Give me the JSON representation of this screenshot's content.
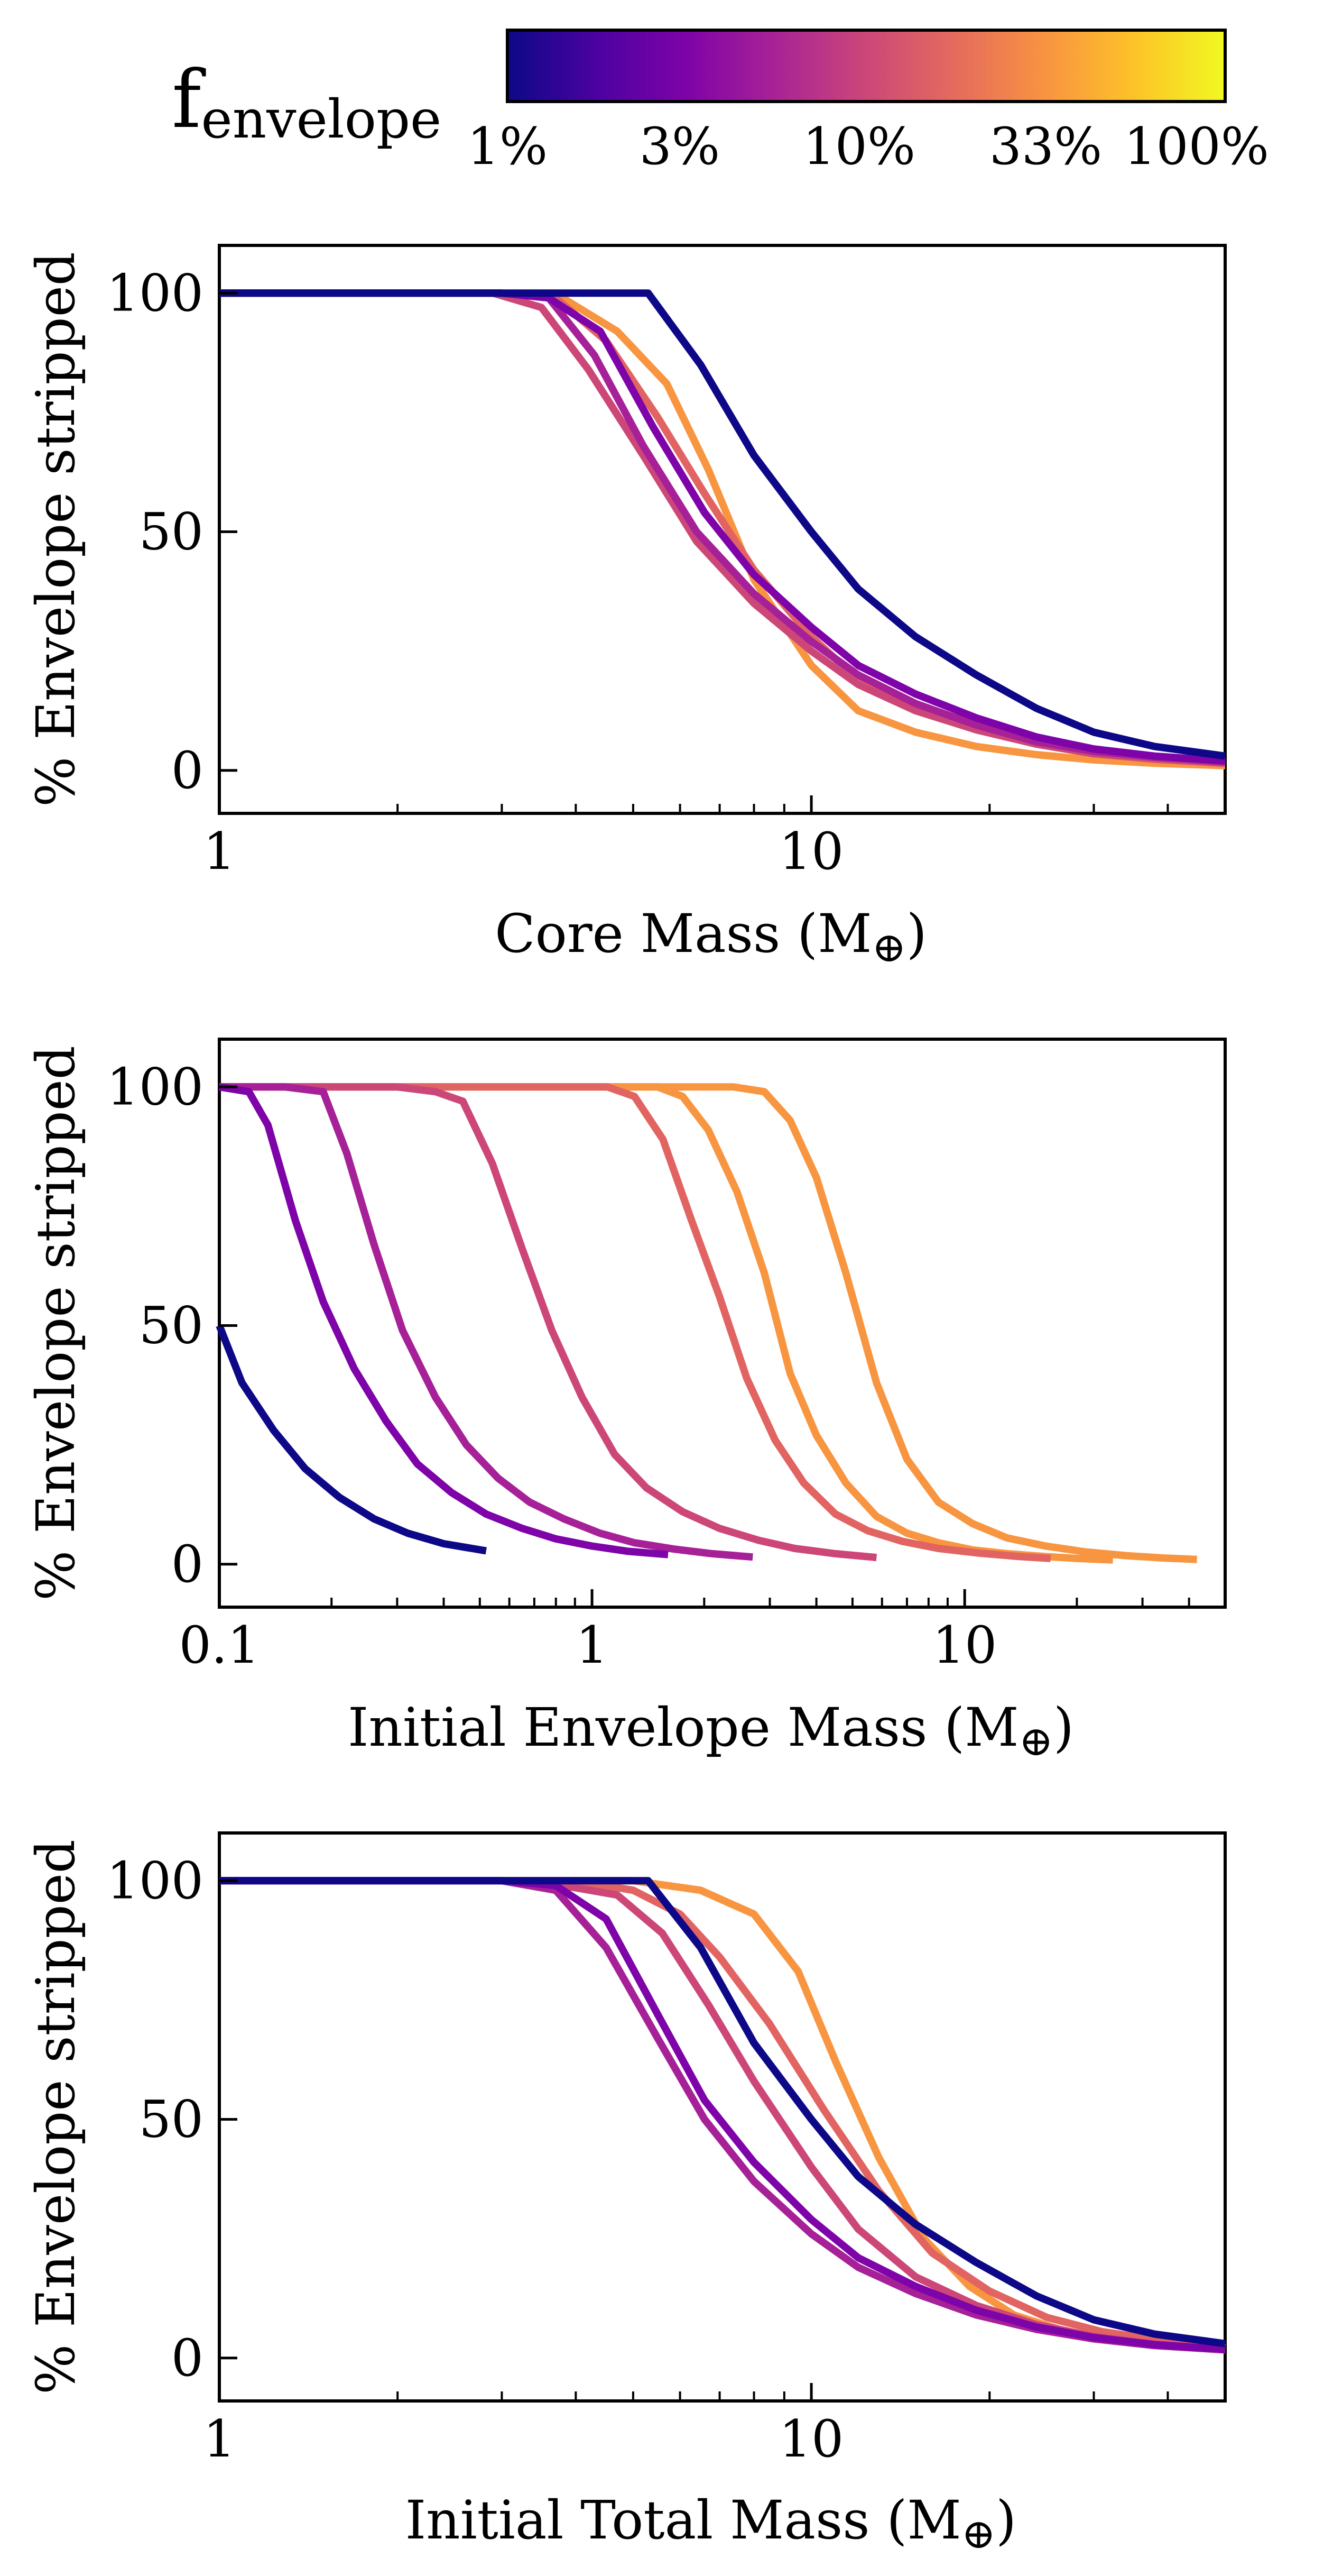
{
  "colorbar": {
    "title_main": "f",
    "title_sub": "envelope",
    "tick_labels": [
      "1%",
      "3%",
      "10%",
      "33%",
      "100%"
    ],
    "colormap": "plasma"
  },
  "series_colors": [
    "#0d0887",
    "#7e03a8",
    "#a62098",
    "#cc4778",
    "#e16462",
    "#f89540"
  ],
  "chart_data": [
    {
      "type": "line",
      "xlabel_text": "Core Mass (M",
      "xlabel_symbol": "⊕",
      "xlabel_close": ")",
      "ylabel": "% Envelope stripped",
      "xscale": "log",
      "xlim": [
        1,
        50
      ],
      "ylim": [
        -9,
        110
      ],
      "xticks": [
        1,
        10
      ],
      "xtick_labels": [
        "1",
        "10"
      ],
      "yticks": [
        0,
        50,
        100
      ],
      "ytick_labels": [
        "0",
        "50",
        "100"
      ],
      "series": [
        {
          "x": [
            1,
            2,
            3,
            4,
            5.3,
            6.5,
            8,
            10,
            12,
            15,
            19,
            24,
            30,
            38,
            50
          ],
          "y": [
            100,
            100,
            100,
            100,
            100,
            85,
            66,
            50,
            38,
            28,
            20,
            13,
            8,
            5,
            3
          ]
        },
        {
          "x": [
            1,
            2,
            3,
            3.6,
            4.4,
            5.4,
            6.6,
            8,
            10,
            12,
            15,
            19,
            24,
            30,
            38,
            50
          ],
          "y": [
            100,
            100,
            100,
            99,
            92,
            72,
            54,
            41,
            30,
            22,
            16,
            11,
            7,
            4.5,
            3,
            2
          ]
        },
        {
          "x": [
            1,
            2,
            3,
            3.6,
            4.3,
            5.2,
            6.4,
            8,
            10,
            12,
            15,
            19,
            24,
            30,
            38,
            50
          ],
          "y": [
            100,
            100,
            100,
            99,
            87,
            68,
            50,
            37,
            27,
            20,
            14,
            9.5,
            6,
            4,
            2.8,
            1.8
          ]
        },
        {
          "x": [
            1,
            2,
            2.9,
            3.5,
            4.2,
            5.2,
            6.4,
            8,
            10,
            12,
            15,
            19,
            24,
            30,
            38,
            50
          ],
          "y": [
            100,
            100,
            100,
            97,
            84,
            66,
            48,
            35,
            25,
            18,
            12.5,
            8.5,
            5.5,
            3.5,
            2.5,
            1.5
          ]
        },
        {
          "x": [
            1,
            2,
            3,
            3.7,
            4.5,
            5.5,
            6.6,
            8,
            10,
            12,
            15,
            19,
            24,
            30,
            38,
            50
          ],
          "y": [
            100,
            100,
            100,
            99,
            90,
            74,
            58,
            42,
            28,
            19,
            13,
            8.5,
            5.5,
            3.5,
            2.3,
            1.5
          ]
        },
        {
          "x": [
            1,
            2,
            3,
            3.8,
            4.7,
            5.7,
            6.7,
            8,
            10,
            12,
            15,
            19,
            24,
            30,
            38,
            50
          ],
          "y": [
            100,
            100,
            100,
            99,
            92,
            81,
            63,
            40,
            22,
            12.5,
            8,
            5,
            3.3,
            2.2,
            1.5,
            1
          ]
        }
      ]
    },
    {
      "type": "line",
      "xlabel_text": "Initial Envelope Mass (M",
      "xlabel_symbol": "⊕",
      "xlabel_close": ")",
      "ylabel": "% Envelope stripped",
      "xscale": "log",
      "xlim": [
        0.1,
        50
      ],
      "ylim": [
        -9,
        110
      ],
      "xticks": [
        0.1,
        1,
        10
      ],
      "xtick_labels": [
        "0.1",
        "1",
        "10"
      ],
      "yticks": [
        0,
        50,
        100
      ],
      "ytick_labels": [
        "0",
        "50",
        "100"
      ],
      "series": [
        {
          "x": [
            0.1,
            0.115,
            0.14,
            0.17,
            0.21,
            0.26,
            0.32,
            0.4,
            0.52
          ],
          "y": [
            50,
            38,
            28,
            20,
            14,
            9.5,
            6.5,
            4.3,
            2.8
          ]
        },
        {
          "x": [
            0.1,
            0.12,
            0.135,
            0.16,
            0.19,
            0.23,
            0.28,
            0.34,
            0.42,
            0.52,
            0.65,
            0.8,
            1,
            1.25,
            1.6
          ],
          "y": [
            100,
            99,
            92,
            72,
            55,
            41,
            30,
            21,
            15,
            10.5,
            7.5,
            5.3,
            3.8,
            2.7,
            2
          ]
        },
        {
          "x": [
            0.1,
            0.15,
            0.19,
            0.22,
            0.26,
            0.31,
            0.38,
            0.46,
            0.56,
            0.68,
            0.84,
            1.05,
            1.3,
            1.65,
            2.1,
            2.7
          ],
          "y": [
            100,
            100,
            99,
            86,
            67,
            49,
            35,
            25,
            18,
            13,
            9.5,
            6.5,
            4.5,
            3.2,
            2.2,
            1.5
          ]
        },
        {
          "x": [
            0.1,
            0.3,
            0.38,
            0.45,
            0.54,
            0.65,
            0.78,
            0.94,
            1.15,
            1.4,
            1.75,
            2.2,
            2.8,
            3.5,
            4.5,
            5.8
          ],
          "y": [
            100,
            100,
            99,
            97,
            84,
            66,
            49,
            35,
            23,
            16,
            11,
            7.5,
            5,
            3.3,
            2.2,
            1.4
          ]
        },
        {
          "x": [
            0.1,
            0.5,
            0.9,
            1.1,
            1.3,
            1.55,
            1.85,
            2.2,
            2.6,
            3.1,
            3.7,
            4.5,
            5.5,
            6.8,
            8.5,
            11,
            14,
            17
          ],
          "y": [
            100,
            100,
            100,
            100,
            98,
            89,
            72,
            56,
            39,
            26,
            17,
            10.5,
            7,
            4.8,
            3.3,
            2.3,
            1.6,
            1.2
          ]
        },
        {
          "x": [
            0.1,
            1,
            1.5,
            1.75,
            2.05,
            2.45,
            2.9,
            3.4,
            4,
            4.8,
            5.8,
            7,
            8.5,
            10.5,
            13,
            16.5,
            20,
            25
          ],
          "y": [
            100,
            100,
            100,
            98,
            91,
            78,
            61,
            40,
            27,
            17,
            10,
            6.5,
            4.5,
            3,
            2.2,
            1.6,
            1.2,
            0.9
          ]
        },
        {
          "x": [
            0.1,
            1.5,
            2.4,
            2.9,
            3.4,
            4,
            4.8,
            5.8,
            7,
            8.5,
            10.5,
            13,
            16.5,
            21,
            27,
            34,
            42
          ],
          "y": [
            100,
            100,
            100,
            99,
            93,
            81,
            61,
            38,
            22,
            13,
            8.5,
            5.5,
            3.8,
            2.6,
            1.8,
            1.3,
            1
          ]
        }
      ]
    },
    {
      "type": "line",
      "xlabel_text": "Initial Total Mass (M",
      "xlabel_symbol": "⊕",
      "xlabel_close": ")",
      "ylabel": "% Envelope stripped",
      "xscale": "log",
      "xlim": [
        1,
        50
      ],
      "ylim": [
        -9,
        110
      ],
      "xticks": [
        1,
        10
      ],
      "xtick_labels": [
        "1",
        "10"
      ],
      "yticks": [
        0,
        50,
        100
      ],
      "ytick_labels": [
        "0",
        "50",
        "100"
      ],
      "series": [
        {
          "x": [
            1,
            2,
            3,
            4,
            5.3,
            6.5,
            8,
            10,
            12,
            15,
            19,
            24,
            30,
            38,
            50
          ],
          "y": [
            100,
            100,
            100,
            100,
            100,
            86,
            66,
            50,
            38,
            28,
            20,
            13,
            8,
            5,
            3
          ]
        },
        {
          "x": [
            1,
            2,
            3,
            3.7,
            4.5,
            5.5,
            6.6,
            8,
            10,
            12,
            15,
            19,
            24,
            30,
            38,
            50
          ],
          "y": [
            100,
            100,
            100,
            99,
            92,
            72,
            54,
            41,
            29,
            21,
            15,
            10,
            6.5,
            4.3,
            2.8,
            1.8
          ]
        },
        {
          "x": [
            1,
            2,
            3,
            3.7,
            4.5,
            5.5,
            6.6,
            8,
            10,
            12,
            15,
            19,
            24,
            30,
            38,
            50
          ],
          "y": [
            100,
            100,
            100,
            98,
            86,
            67,
            50,
            37,
            26,
            19,
            13.5,
            9,
            6,
            4,
            2.6,
            1.7
          ]
        },
        {
          "x": [
            1,
            2,
            3,
            3.8,
            4.7,
            5.6,
            6.7,
            8,
            10,
            12,
            15,
            19,
            24,
            30,
            38,
            50
          ],
          "y": [
            100,
            100,
            100,
            99,
            97,
            89,
            74,
            58,
            40,
            27,
            17,
            11,
            7,
            4.5,
            2.9,
            1.9
          ]
        },
        {
          "x": [
            1,
            2,
            3,
            4,
            5,
            6,
            7,
            8.5,
            10.5,
            13,
            16,
            20,
            25,
            31,
            40,
            50
          ],
          "y": [
            100,
            100,
            100,
            100,
            98,
            93,
            84,
            70,
            52,
            35,
            22,
            14,
            8.5,
            5.5,
            3.5,
            2.2
          ]
        },
        {
          "x": [
            1,
            2,
            3,
            4,
            5,
            6.5,
            8,
            9.5,
            11,
            13,
            15.5,
            18.5,
            22,
            27,
            34,
            42,
            50
          ],
          "y": [
            100,
            100,
            100,
            100,
            100,
            98,
            93,
            81,
            62,
            42,
            25,
            15,
            9,
            5.5,
            3.5,
            2.3,
            1.7
          ]
        }
      ]
    }
  ]
}
